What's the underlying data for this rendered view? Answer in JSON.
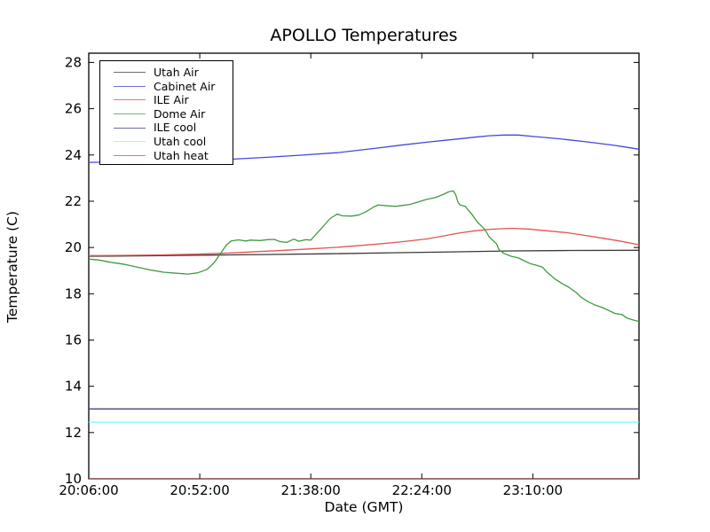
{
  "title": "APOLLO Temperatures",
  "axes": {
    "xlabel": "Date (GMT)",
    "ylabel": "Temperature (C)"
  },
  "chart_data": {
    "type": "line",
    "title": "APOLLO Temperatures",
    "xlabel": "Date (GMT)",
    "ylabel": "Temperature (C)",
    "x_unit": "minutes after 20:06:00 GMT",
    "xlim": [
      0,
      228
    ],
    "ylim": [
      10,
      28.4
    ],
    "grid": false,
    "legend_position": "upper left",
    "x_ticks": [
      {
        "pos": 0,
        "label": "20:06:00"
      },
      {
        "pos": 46,
        "label": "20:52:00"
      },
      {
        "pos": 92,
        "label": "21:38:00"
      },
      {
        "pos": 138,
        "label": "22:24:00"
      },
      {
        "pos": 184,
        "label": "23:10:00"
      }
    ],
    "y_ticks": [
      {
        "pos": 10,
        "label": "10"
      },
      {
        "pos": 12,
        "label": "12"
      },
      {
        "pos": 14,
        "label": "14"
      },
      {
        "pos": 16,
        "label": "16"
      },
      {
        "pos": 18,
        "label": "18"
      },
      {
        "pos": 20,
        "label": "20"
      },
      {
        "pos": 22,
        "label": "22"
      },
      {
        "pos": 24,
        "label": "24"
      },
      {
        "pos": 26,
        "label": "26"
      },
      {
        "pos": 28,
        "label": "28"
      }
    ],
    "series": [
      {
        "name": "Utah Air",
        "color": "#3a3a3a",
        "legend_color": "#6e6e6e",
        "points": [
          [
            0,
            19.62
          ],
          [
            25,
            19.64
          ],
          [
            50,
            19.67
          ],
          [
            75,
            19.7
          ],
          [
            100,
            19.73
          ],
          [
            125,
            19.77
          ],
          [
            150,
            19.81
          ],
          [
            175,
            19.85
          ],
          [
            200,
            19.87
          ],
          [
            228,
            19.88
          ]
        ]
      },
      {
        "name": "Cabinet Air",
        "color": "#4646dc",
        "legend_color": "#6b6be4",
        "points": [
          [
            0,
            23.68
          ],
          [
            10,
            23.69
          ],
          [
            22,
            23.71
          ],
          [
            37,
            23.73
          ],
          [
            50,
            23.77
          ],
          [
            63,
            23.84
          ],
          [
            74,
            23.9
          ],
          [
            88,
            23.99
          ],
          [
            103,
            24.1
          ],
          [
            118,
            24.28
          ],
          [
            129,
            24.42
          ],
          [
            140,
            24.55
          ],
          [
            151,
            24.67
          ],
          [
            160,
            24.77
          ],
          [
            166,
            24.83
          ],
          [
            172,
            24.86
          ],
          [
            178,
            24.86
          ],
          [
            184,
            24.8
          ],
          [
            195,
            24.7
          ],
          [
            206,
            24.57
          ],
          [
            217,
            24.43
          ],
          [
            222,
            24.35
          ],
          [
            228,
            24.25
          ]
        ]
      },
      {
        "name": "ILE Air",
        "color": "#e05454",
        "legend_color": "#f37070",
        "points": [
          [
            0,
            19.65
          ],
          [
            15,
            19.66
          ],
          [
            30,
            19.68
          ],
          [
            44,
            19.71
          ],
          [
            55,
            19.75
          ],
          [
            66,
            19.8
          ],
          [
            81,
            19.88
          ],
          [
            92,
            19.94
          ],
          [
            103,
            20.01
          ],
          [
            118,
            20.13
          ],
          [
            129,
            20.24
          ],
          [
            140,
            20.37
          ],
          [
            148,
            20.52
          ],
          [
            153,
            20.62
          ],
          [
            160,
            20.72
          ],
          [
            167,
            20.79
          ],
          [
            175,
            20.83
          ],
          [
            182,
            20.8
          ],
          [
            190,
            20.72
          ],
          [
            198,
            20.64
          ],
          [
            206,
            20.52
          ],
          [
            213,
            20.4
          ],
          [
            220,
            20.28
          ],
          [
            228,
            20.12
          ]
        ]
      },
      {
        "name": "Dome Air",
        "color": "#3f9b3f",
        "legend_color": "#6fb96f",
        "points": [
          [
            0,
            19.5
          ],
          [
            4,
            19.46
          ],
          [
            9,
            19.36
          ],
          [
            15,
            19.27
          ],
          [
            20,
            19.15
          ],
          [
            26,
            19.02
          ],
          [
            31,
            18.93
          ],
          [
            37,
            18.88
          ],
          [
            41,
            18.85
          ],
          [
            45,
            18.9
          ],
          [
            49,
            19.05
          ],
          [
            52,
            19.35
          ],
          [
            55,
            19.8
          ],
          [
            57,
            20.1
          ],
          [
            59,
            20.28
          ],
          [
            62,
            20.33
          ],
          [
            65,
            20.28
          ],
          [
            67,
            20.32
          ],
          [
            71,
            20.3
          ],
          [
            74,
            20.34
          ],
          [
            77,
            20.35
          ],
          [
            79,
            20.26
          ],
          [
            82,
            20.22
          ],
          [
            85,
            20.36
          ],
          [
            87,
            20.27
          ],
          [
            90,
            20.34
          ],
          [
            92,
            20.32
          ],
          [
            94,
            20.55
          ],
          [
            97,
            20.9
          ],
          [
            100,
            21.25
          ],
          [
            103,
            21.45
          ],
          [
            105,
            21.37
          ],
          [
            109,
            21.36
          ],
          [
            112,
            21.41
          ],
          [
            115,
            21.55
          ],
          [
            118,
            21.75
          ],
          [
            120,
            21.84
          ],
          [
            124,
            21.8
          ],
          [
            127,
            21.78
          ],
          [
            130,
            21.82
          ],
          [
            133,
            21.86
          ],
          [
            136,
            21.95
          ],
          [
            140,
            22.08
          ],
          [
            144,
            22.17
          ],
          [
            147,
            22.3
          ],
          [
            149,
            22.4
          ],
          [
            151,
            22.45
          ],
          [
            152,
            22.3
          ],
          [
            153,
            21.95
          ],
          [
            154,
            21.83
          ],
          [
            156,
            21.78
          ],
          [
            157,
            21.65
          ],
          [
            159,
            21.4
          ],
          [
            161,
            21.1
          ],
          [
            164,
            20.8
          ],
          [
            166,
            20.45
          ],
          [
            169,
            20.15
          ],
          [
            170,
            19.9
          ],
          [
            172,
            19.75
          ],
          [
            175,
            19.62
          ],
          [
            178,
            19.55
          ],
          [
            180,
            19.45
          ],
          [
            183,
            19.3
          ],
          [
            185,
            19.25
          ],
          [
            188,
            19.15
          ],
          [
            190,
            18.92
          ],
          [
            193,
            18.65
          ],
          [
            196,
            18.45
          ],
          [
            199,
            18.28
          ],
          [
            202,
            18.05
          ],
          [
            204,
            17.85
          ],
          [
            207,
            17.65
          ],
          [
            210,
            17.5
          ],
          [
            213,
            17.4
          ],
          [
            215,
            17.3
          ],
          [
            218,
            17.15
          ],
          [
            221,
            17.1
          ],
          [
            223,
            16.95
          ],
          [
            226,
            16.85
          ],
          [
            228,
            16.8
          ]
        ]
      },
      {
        "name": "ILE cool",
        "color": "#45457c",
        "legend_color": "#6a6aa8",
        "points": [
          [
            0,
            13.02
          ],
          [
            228,
            13.02
          ]
        ]
      },
      {
        "name": "Utah cool",
        "color": "#77f9f9",
        "legend_color": "#8ffcfc",
        "points": [
          [
            0,
            12.45
          ],
          [
            228,
            12.45
          ]
        ]
      },
      {
        "name": "Utah heat",
        "color": "#9a4545",
        "legend_color": "#f37070",
        "points": [
          [
            0,
            10.0
          ],
          [
            228,
            10.0
          ]
        ]
      }
    ]
  }
}
